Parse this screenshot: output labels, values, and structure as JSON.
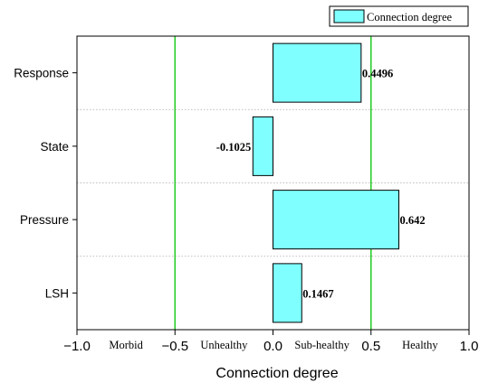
{
  "chart_data": {
    "type": "bar",
    "orientation": "horizontal",
    "categories": [
      "Response",
      "State",
      "Pressure",
      "LSH"
    ],
    "series": [
      {
        "name": "Connection degree",
        "values": [
          0.4496,
          -0.1025,
          0.642,
          0.1467
        ],
        "value_labels": [
          "0.4496",
          "-0.1025",
          "0.642",
          "0.1467"
        ]
      }
    ],
    "xlabel": "Connection degree",
    "xlim": [
      -1.0,
      1.0
    ],
    "x_ticks": [
      -1.0,
      -0.5,
      0.0,
      0.5,
      1.0
    ],
    "x_tick_labels": [
      "−1.0",
      "−0.5",
      "0.0",
      "0.5",
      "1.0"
    ],
    "reference_lines": [
      -0.5,
      0.5
    ],
    "zones": [
      {
        "label": "Morbid",
        "center": -0.75
      },
      {
        "label": "Unhealthy",
        "center": -0.25
      },
      {
        "label": "Sub-healthy",
        "center": 0.25
      },
      {
        "label": "Healthy",
        "center": 0.75
      }
    ],
    "legend_position": "top-right",
    "category_grid": "dotted",
    "colors": {
      "bar_fill": "#7fffff",
      "bar_stroke": "#000000",
      "reference_line": "#22cc22",
      "grid": "#aaaaaa",
      "axis": "#000000"
    }
  }
}
